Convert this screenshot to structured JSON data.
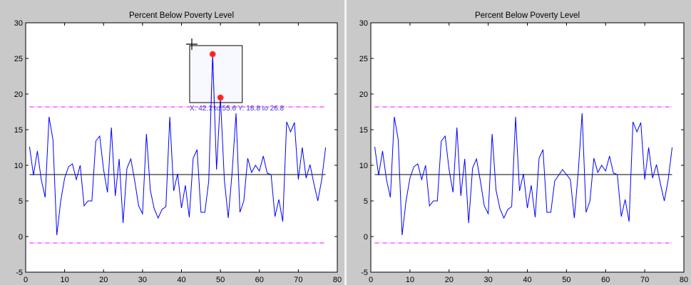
{
  "colors": {
    "series": "#0000ff",
    "mean": "#000000",
    "limits": "#ff00ff",
    "marker": "#ff2020",
    "selection_fill": "#f4f4ff",
    "selection_text": "#3333ee",
    "figure_bg": "#c9c9c9"
  },
  "chart_data": [
    {
      "type": "line",
      "title": "Percent Below Poverty Level",
      "xlim": [
        0,
        80
      ],
      "ylim": [
        -5,
        30
      ],
      "x_ticks": [
        0,
        10,
        20,
        30,
        40,
        50,
        60,
        70,
        80
      ],
      "y_ticks": [
        -5,
        0,
        5,
        10,
        15,
        20,
        25,
        30
      ],
      "series": [
        {
          "values": [
            12.6,
            8.6,
            12.0,
            8.0,
            5.5,
            16.8,
            13.6,
            0.2,
            5.0,
            8.2,
            9.8,
            10.2,
            8.0,
            10.0,
            4.3,
            5.0,
            5.0,
            13.4,
            14.1,
            9.4,
            6.2,
            15.3,
            5.7,
            10.9,
            1.9,
            9.6,
            10.9,
            7.8,
            4.3,
            3.2,
            14.4,
            6.5,
            3.9,
            2.6,
            3.8,
            4.2,
            16.8,
            6.4,
            8.8,
            4.0,
            7.2,
            2.7,
            11.0,
            12.2,
            3.4,
            3.4,
            7.8,
            25.6,
            9.4,
            19.5,
            8.0,
            2.6,
            9.0,
            17.3,
            3.4,
            5.0,
            11.0,
            9.0,
            10.0,
            9.2,
            11.3,
            8.9,
            8.7,
            2.8,
            5.2,
            2.1,
            16.1,
            14.7,
            16.0,
            8.0,
            12.5,
            8.2,
            10.1,
            7.4,
            5.0,
            8.0,
            12.5
          ]
        }
      ],
      "mean_line": 8.7,
      "limit_lines": [
        18.2,
        -0.9
      ],
      "selection": {
        "label": "X: 42.1 to 55.6 Y: 18.8 to 26.8",
        "x_range": [
          42.1,
          55.6
        ],
        "y_range": [
          18.8,
          26.8
        ],
        "highlighted_points": [
          {
            "x": 48,
            "y": 25.6
          },
          {
            "x": 50,
            "y": 19.5
          }
        ]
      }
    },
    {
      "type": "line",
      "title": "Percent Below Poverty Level",
      "xlim": [
        0,
        80
      ],
      "ylim": [
        -5,
        30
      ],
      "x_ticks": [
        0,
        10,
        20,
        30,
        40,
        50,
        60,
        70,
        80
      ],
      "y_ticks": [
        -5,
        0,
        5,
        10,
        15,
        20,
        25,
        30
      ],
      "series": [
        {
          "values": [
            12.6,
            8.6,
            12.0,
            8.0,
            5.5,
            16.8,
            13.6,
            0.2,
            5.0,
            8.2,
            9.8,
            10.2,
            8.0,
            10.0,
            4.3,
            5.0,
            5.0,
            13.4,
            14.1,
            9.4,
            6.2,
            15.3,
            5.7,
            10.9,
            1.9,
            9.6,
            10.9,
            7.8,
            4.3,
            3.2,
            14.4,
            6.5,
            3.9,
            2.6,
            3.8,
            4.2,
            16.8,
            6.4,
            8.8,
            4.0,
            7.2,
            2.7,
            11.0,
            12.2,
            3.4,
            3.4,
            7.8,
            8.6,
            9.4,
            8.7,
            8.0,
            2.6,
            9.0,
            17.3,
            3.4,
            5.0,
            11.0,
            9.0,
            10.0,
            9.2,
            11.3,
            8.9,
            8.7,
            2.8,
            5.2,
            2.1,
            16.1,
            14.7,
            16.0,
            8.0,
            12.5,
            8.2,
            10.1,
            7.4,
            5.0,
            8.0,
            12.5
          ]
        }
      ],
      "mean_line": 8.7,
      "limit_lines": [
        18.2,
        -0.9
      ]
    }
  ]
}
